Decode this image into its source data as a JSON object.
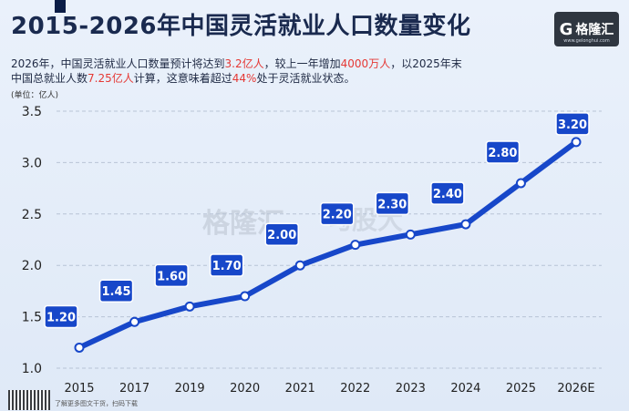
{
  "header": {
    "title": "2015-2026年中国灵活就业人口数量变化",
    "subtitle_line1_a": "2026年，中国灵活就业人口数量预计将达到",
    "subtitle_line1_hl1": "3.2亿人",
    "subtitle_line1_b": "，较上一年增加",
    "subtitle_line1_hl2": "4000万人",
    "subtitle_line1_c": "，以2025年末",
    "subtitle_line2_a": "中国总就业人数",
    "subtitle_line2_hl1": "7.25亿人",
    "subtitle_line2_b": "计算，这意味着超过",
    "subtitle_line2_hl2": "44%",
    "subtitle_line2_c": "处于灵活就业状态。",
    "unit": "(单位：亿人)"
  },
  "logo": {
    "icon": "G",
    "text": "格隆汇",
    "small": "www.gelonghui.com"
  },
  "watermark": {
    "left": "格隆汇",
    "right": "勾股大"
  },
  "footer": {
    "note": "了解更多图文干货，扫码下载"
  },
  "colors": {
    "line": "#1747c9",
    "label_bg": "#1747c9",
    "highlight": "#e53935",
    "title": "#1a2a4f"
  },
  "chart_data": {
    "type": "line",
    "categories": [
      "2015",
      "2017",
      "2019",
      "2020",
      "2021",
      "2022",
      "2023",
      "2024",
      "2025",
      "2026E"
    ],
    "values": [
      1.2,
      1.45,
      1.6,
      1.7,
      2.0,
      2.2,
      2.3,
      2.4,
      2.8,
      3.2
    ],
    "data_labels": [
      "1.20",
      "1.45",
      "1.60",
      "1.70",
      "2.00",
      "2.20",
      "2.30",
      "2.40",
      "2.80",
      "3.20"
    ],
    "y_ticks": [
      "1.0",
      "1.5",
      "2.0",
      "2.5",
      "3.0",
      "3.5"
    ],
    "ylim": [
      1.0,
      3.5
    ],
    "grid": true,
    "title": "2015-2026年中国灵活就业人口数量变化",
    "xlabel": "",
    "ylabel": "(单位：亿人)"
  }
}
